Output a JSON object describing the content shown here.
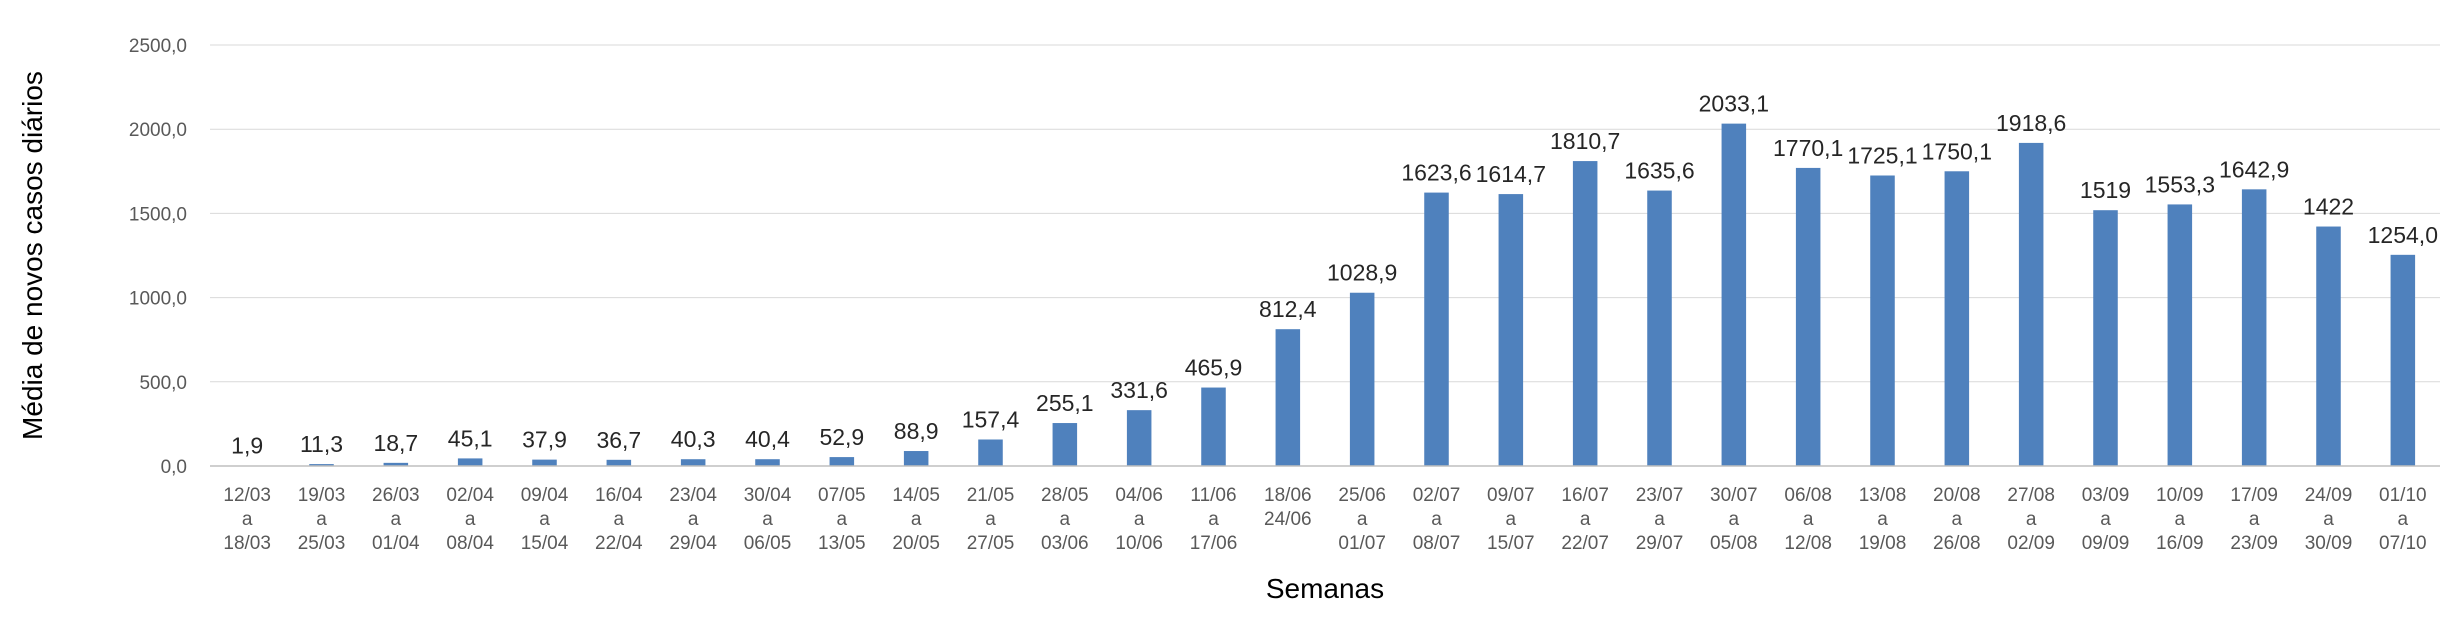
{
  "chart_data": {
    "type": "bar",
    "xlabel": "Semanas",
    "ylabel": "Média de novos casos diários",
    "ylim": [
      0,
      2500
    ],
    "yticks": [
      "0,0",
      "500,0",
      "1000,0",
      "1500,0",
      "2000,0",
      "2500,0"
    ],
    "grid": true,
    "legend": "none",
    "bar_color": "#4f81bd",
    "categories": [
      [
        "12/03",
        "a",
        "18/03"
      ],
      [
        "19/03",
        "a",
        "25/03"
      ],
      [
        "26/03",
        "a",
        "01/04"
      ],
      [
        "02/04",
        "a",
        "08/04"
      ],
      [
        "09/04",
        "a",
        "15/04"
      ],
      [
        "16/04",
        "a",
        "22/04"
      ],
      [
        "23/04",
        "a",
        "29/04"
      ],
      [
        "30/04",
        "a",
        "06/05"
      ],
      [
        "07/05",
        "a",
        "13/05"
      ],
      [
        "14/05",
        "a",
        "20/05"
      ],
      [
        "21/05",
        "a",
        "27/05"
      ],
      [
        "28/05",
        "a",
        "03/06"
      ],
      [
        "04/06",
        "a",
        "10/06"
      ],
      [
        "11/06",
        "a",
        "17/06"
      ],
      [
        "18/06",
        "24/06"
      ],
      [
        "25/06",
        "a",
        "01/07"
      ],
      [
        "02/07",
        "a",
        "08/07"
      ],
      [
        "09/07",
        "a",
        "15/07"
      ],
      [
        "16/07",
        "a",
        "22/07"
      ],
      [
        "23/07",
        "a",
        "29/07"
      ],
      [
        "30/07",
        "a",
        "05/08"
      ],
      [
        "06/08",
        "a",
        "12/08"
      ],
      [
        "13/08",
        "a",
        "19/08"
      ],
      [
        "20/08",
        "a",
        "26/08"
      ],
      [
        "27/08",
        "a",
        "02/09"
      ],
      [
        "03/09",
        "a",
        "09/09"
      ],
      [
        "10/09",
        "a",
        "16/09"
      ],
      [
        "17/09",
        "a",
        "23/09"
      ],
      [
        "24/09",
        "a",
        "30/09"
      ],
      [
        "01/10",
        "a",
        "07/10"
      ]
    ],
    "values": [
      1.9,
      11.3,
      18.7,
      45.1,
      37.9,
      36.7,
      40.3,
      40.4,
      52.9,
      88.9,
      157.4,
      255.1,
      331.6,
      465.9,
      812.4,
      1028.9,
      1623.6,
      1614.7,
      1810.7,
      1635.6,
      2033.1,
      1770.1,
      1725.1,
      1750.1,
      1918.6,
      1519,
      1553.3,
      1642.9,
      1422,
      1254.0
    ],
    "data_labels": [
      "1,9",
      "11,3",
      "18,7",
      "45,1",
      "37,9",
      "36,7",
      "40,3",
      "40,4",
      "52,9",
      "88,9",
      "157,4",
      "255,1",
      "331,6",
      "465,9",
      "812,4",
      "1028,9",
      "1623,6",
      "1614,7",
      "1810,7",
      "1635,6",
      "2033,1",
      "1770,1",
      "1725,1",
      "1750,1",
      "1918,6",
      "1519",
      "1553,3",
      "1642,9",
      "1422",
      "1254,0"
    ]
  }
}
